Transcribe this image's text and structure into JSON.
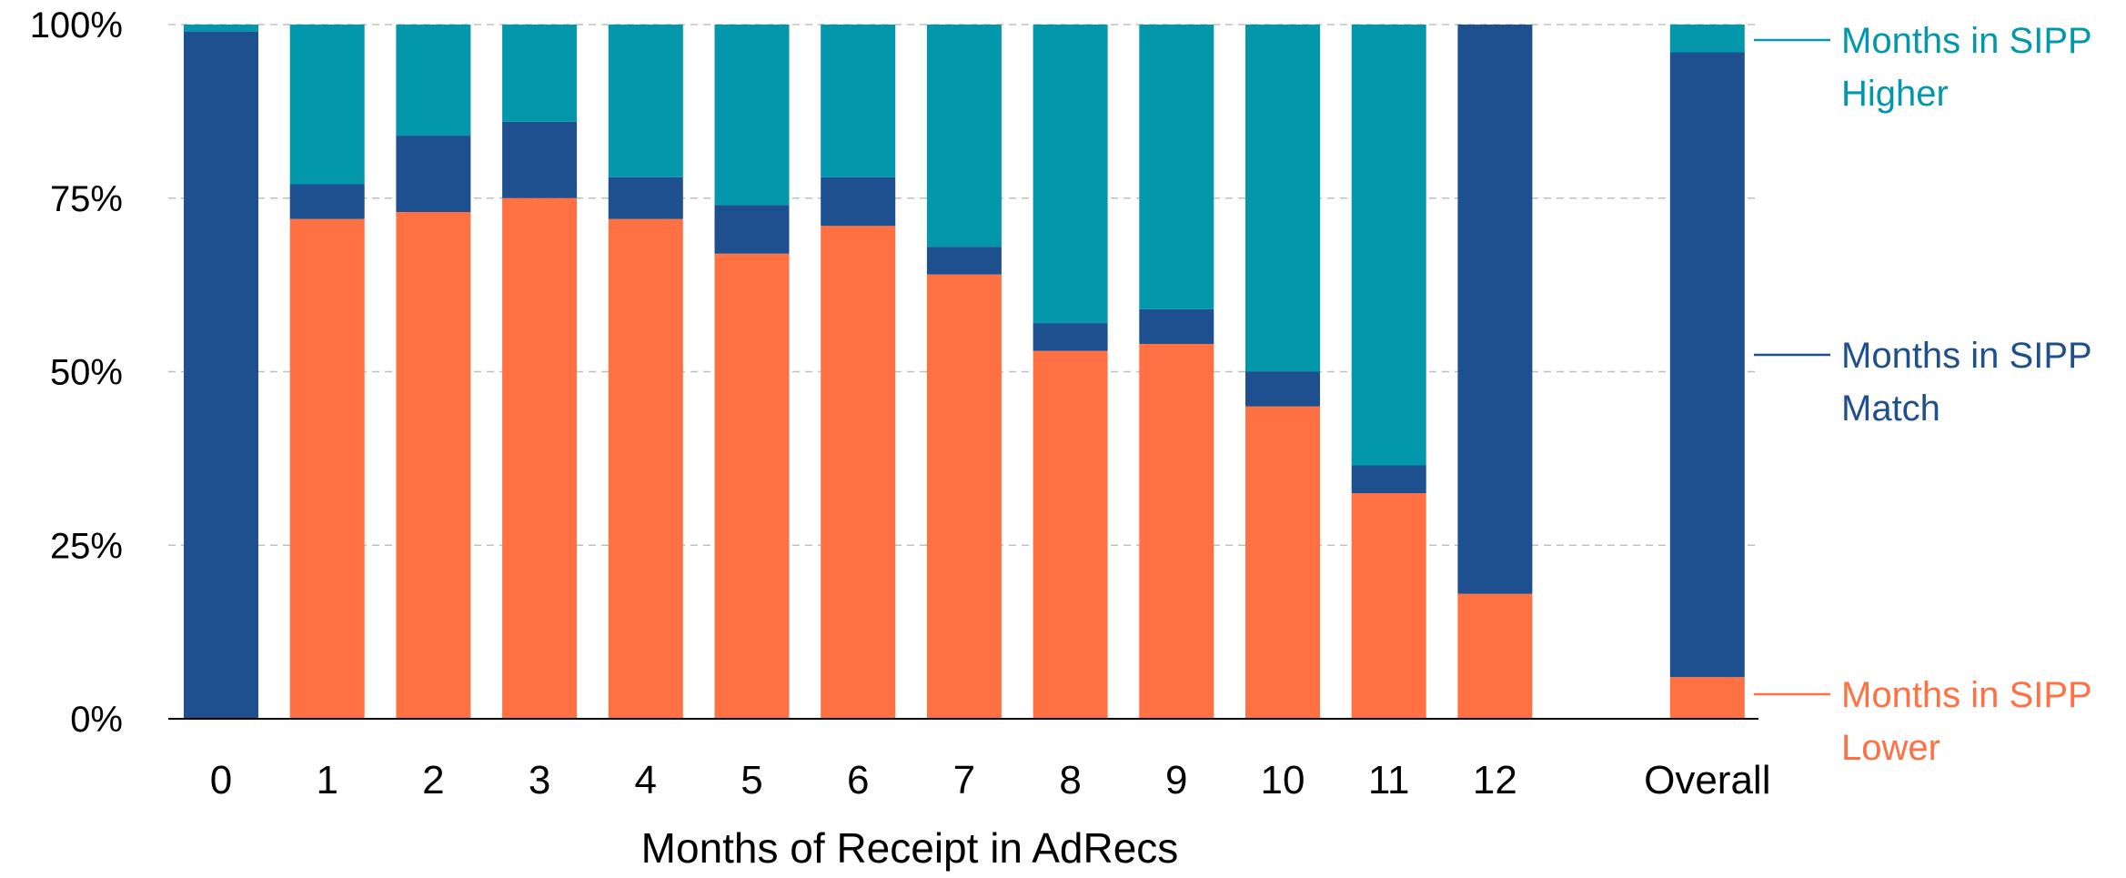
{
  "chart_data": {
    "type": "bar",
    "stacked": true,
    "percent": true,
    "categories": [
      "0",
      "1",
      "2",
      "3",
      "4",
      "5",
      "6",
      "7",
      "8",
      "9",
      "10",
      "11",
      "12",
      "",
      "Overall"
    ],
    "series": [
      {
        "name": "Months in SIPP Lower",
        "legend_lines": [
          "Months in SIPP",
          "Lower"
        ],
        "color": "#FF7043",
        "values": [
          0,
          72,
          73,
          75,
          72,
          67,
          71,
          64,
          53,
          54,
          45,
          32.5,
          18,
          null,
          6
        ]
      },
      {
        "name": "Months in SIPP Match",
        "legend_lines": [
          "Months in SIPP",
          "Match"
        ],
        "color": "#1E4F8E",
        "values": [
          99,
          5,
          11,
          11,
          6,
          7,
          7,
          4,
          4,
          5,
          5,
          4,
          82,
          null,
          90
        ]
      },
      {
        "name": "Months in SIPP Higher",
        "legend_lines": [
          "Months in SIPP",
          "Higher"
        ],
        "color": "#0397AB",
        "values": [
          1,
          23,
          16,
          14,
          22,
          26,
          22,
          32,
          43,
          41,
          50,
          63.5,
          0,
          null,
          4
        ]
      }
    ],
    "xlabel": "Months of Receipt in AdRecs",
    "ylabel": "",
    "ylim": [
      0,
      100
    ],
    "yticks": [
      "0%",
      "25%",
      "50%",
      "75%",
      "100%"
    ],
    "ytick_values": [
      0,
      25,
      50,
      75,
      100
    ],
    "grid": "horizontal dashed",
    "legend_placement": "right, inline labels",
    "colors": {
      "axis": "#000000",
      "grid": "#BFBFBF"
    }
  }
}
